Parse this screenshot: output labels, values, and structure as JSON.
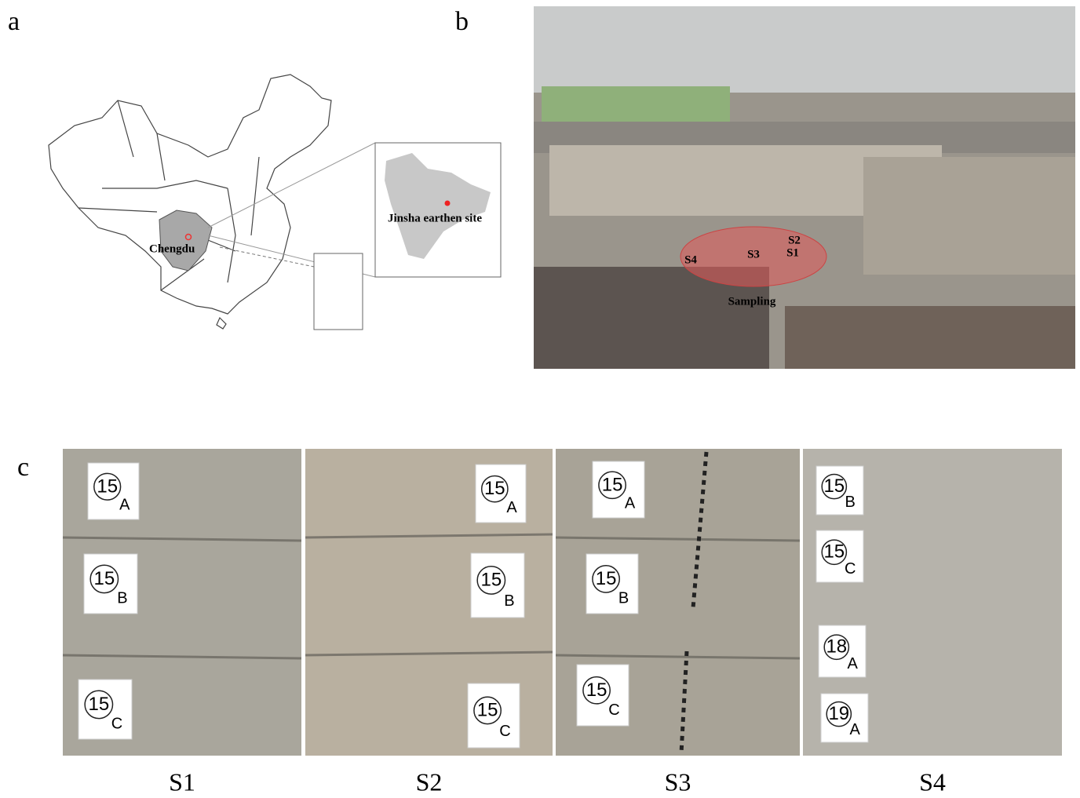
{
  "panels": {
    "a": {
      "label": "a",
      "city": "Chengdu",
      "site": "Jinsha earthen site"
    },
    "b": {
      "label": "b",
      "points": [
        "S2",
        "S1",
        "S3",
        "S4"
      ],
      "sampling": "Sampling"
    },
    "c": {
      "label": "c",
      "samples": [
        {
          "name": "S1",
          "tags": [
            {
              "number": "15",
              "letter": "A"
            },
            {
              "number": "15",
              "letter": "B"
            },
            {
              "number": "15",
              "letter": "C"
            }
          ]
        },
        {
          "name": "S2",
          "tags": [
            {
              "number": "15",
              "letter": "A"
            },
            {
              "number": "15",
              "letter": "B"
            },
            {
              "number": "15",
              "letter": "C"
            }
          ]
        },
        {
          "name": "S3",
          "tags": [
            {
              "number": "15",
              "letter": "A"
            },
            {
              "number": "15",
              "letter": "B"
            },
            {
              "number": "15",
              "letter": "C"
            }
          ]
        },
        {
          "name": "S4",
          "tags": [
            {
              "number": "15",
              "letter": "B"
            },
            {
              "number": "15",
              "letter": "C"
            },
            {
              "number": "18",
              "letter": "A"
            },
            {
              "number": "19",
              "letter": "A"
            }
          ]
        }
      ]
    }
  }
}
